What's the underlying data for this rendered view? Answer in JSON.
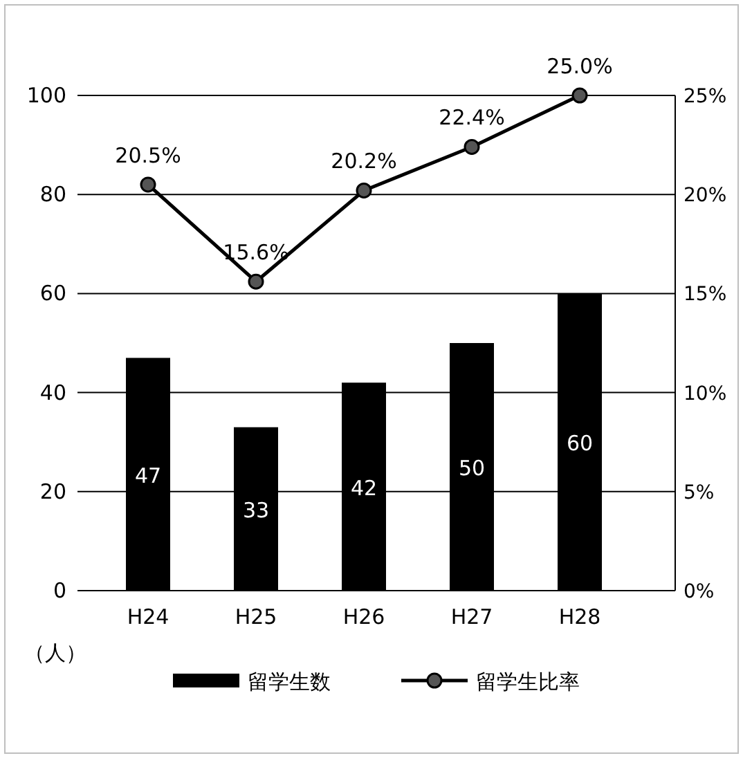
{
  "chart_data": {
    "type": "bar",
    "categories": [
      "H24",
      "H25",
      "H26",
      "H27",
      "H28"
    ],
    "series": [
      {
        "name": "留学生数",
        "color": "#000000",
        "values": [
          47,
          33,
          42,
          50,
          60
        ],
        "value_labels": [
          "47",
          "33",
          "42",
          "50",
          "60"
        ]
      },
      {
        "name": "留学生比率",
        "type": "line",
        "axis": "y2",
        "color": "#000000",
        "values": [
          20.5,
          15.6,
          20.2,
          22.4,
          25.0
        ],
        "value_labels": [
          "20.5%",
          "15.6%",
          "20.2%",
          "22.4%",
          "25.0%"
        ],
        "marker": "circle"
      }
    ],
    "ylabel": "（人）",
    "ylim": [
      0,
      100
    ],
    "yticks": [
      0,
      20,
      40,
      60,
      80,
      100
    ],
    "y2lim": [
      0,
      25
    ],
    "y2ticks": [
      {
        "value": 0,
        "label": "0%"
      },
      {
        "value": 5,
        "label": "5%"
      },
      {
        "value": 10,
        "label": "10%"
      },
      {
        "value": 15,
        "label": "15%"
      },
      {
        "value": 20,
        "label": "20%"
      },
      {
        "value": 25,
        "label": "25%"
      }
    ],
    "grid": "y",
    "legend": "bottom"
  }
}
